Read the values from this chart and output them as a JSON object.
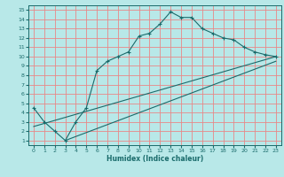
{
  "title": "",
  "xlabel": "Humidex (Indice chaleur)",
  "bg_color": "#b8e8e8",
  "grid_color": "#e88888",
  "line_color": "#1a6b6b",
  "xlim": [
    -0.5,
    23.5
  ],
  "ylim": [
    0.5,
    15.5
  ],
  "xticks": [
    0,
    1,
    2,
    3,
    4,
    5,
    6,
    7,
    8,
    9,
    10,
    11,
    12,
    13,
    14,
    15,
    16,
    17,
    18,
    19,
    20,
    21,
    22,
    23
  ],
  "yticks": [
    1,
    2,
    3,
    4,
    5,
    6,
    7,
    8,
    9,
    10,
    11,
    12,
    13,
    14,
    15
  ],
  "line1_x": [
    0,
    1,
    2,
    3,
    4,
    5,
    6,
    7,
    8,
    9,
    10,
    11,
    12,
    13,
    14,
    15,
    16,
    17,
    18,
    19,
    20,
    21,
    22,
    23
  ],
  "line1_y": [
    4.5,
    3.0,
    2.0,
    1.0,
    3.0,
    4.5,
    8.5,
    9.5,
    10.0,
    10.5,
    12.2,
    12.5,
    13.5,
    14.8,
    14.2,
    14.2,
    13.0,
    12.5,
    12.0,
    11.8,
    11.0,
    10.5,
    10.2,
    10.0
  ],
  "line2_x": [
    0,
    23
  ],
  "line2_y": [
    2.5,
    10.0
  ],
  "line3_x": [
    3,
    23
  ],
  "line3_y": [
    1.0,
    9.5
  ]
}
